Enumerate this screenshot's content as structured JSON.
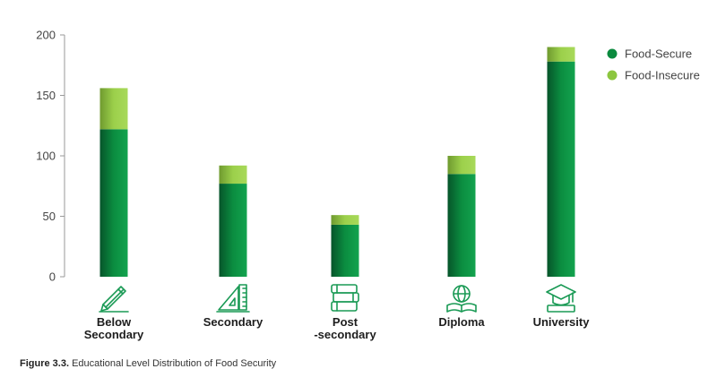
{
  "chart_data": {
    "type": "bar",
    "stacked": true,
    "categories": [
      "Below Secondary",
      "Secondary",
      "Post -secondary",
      "Diploma",
      "University"
    ],
    "category_lines": [
      [
        "Below",
        "Secondary"
      ],
      [
        "Secondary"
      ],
      [
        "Post",
        "-secondary"
      ],
      [
        "Diploma"
      ],
      [
        "University"
      ]
    ],
    "category_icons": [
      "pencil-icon",
      "ruler-triangle-icon",
      "books-icon",
      "globe-book-icon",
      "graduation-cap-icon"
    ],
    "series": [
      {
        "name": "Food-Secure",
        "values": [
          122,
          77,
          43,
          85,
          178
        ],
        "color": "#0a8a3e"
      },
      {
        "name": "Food-Insecure",
        "values": [
          34,
          15,
          8,
          15,
          12
        ],
        "color": "#8cc63f"
      }
    ],
    "ylim": [
      0,
      200
    ],
    "yticks": [
      0,
      50,
      100,
      150,
      200
    ],
    "legend_position": "top-right",
    "icon_color": "#1a9a55"
  },
  "caption": {
    "label": "Figure 3.3.",
    "text": " Educational Level Distribution of Food Security"
  }
}
